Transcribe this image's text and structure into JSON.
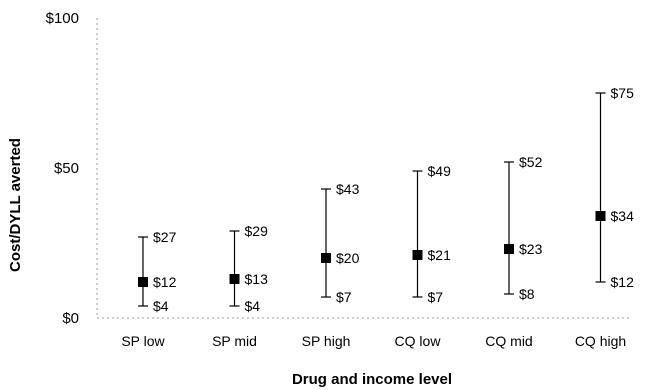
{
  "chart_data": {
    "type": "scatter",
    "subtype": "error-bar",
    "xlabel": "Drug and income level",
    "ylabel": "Cost/DYLL averted",
    "ylim": [
      0,
      100
    ],
    "yticks": [
      {
        "value": 0,
        "label": "$0"
      },
      {
        "value": 50,
        "label": "$50"
      },
      {
        "value": 100,
        "label": "$100"
      }
    ],
    "grid": false,
    "legend": "none",
    "categories": [
      "SP low",
      "SP mid",
      "SP high",
      "CQ low",
      "CQ mid",
      "CQ high"
    ],
    "points": [
      {
        "category": "SP low",
        "low": 4,
        "mid": 12,
        "high": 27,
        "low_label": "$4",
        "mid_label": "$12",
        "high_label": "$27"
      },
      {
        "category": "SP mid",
        "low": 4,
        "mid": 13,
        "high": 29,
        "low_label": "$4",
        "mid_label": "$13",
        "high_label": "$29"
      },
      {
        "category": "SP high",
        "low": 7,
        "mid": 20,
        "high": 43,
        "low_label": "$7",
        "mid_label": "$20",
        "high_label": "$43"
      },
      {
        "category": "CQ low",
        "low": 7,
        "mid": 21,
        "high": 49,
        "low_label": "$7",
        "mid_label": "$21",
        "high_label": "$49"
      },
      {
        "category": "CQ mid",
        "low": 8,
        "mid": 23,
        "high": 52,
        "low_label": "$8",
        "mid_label": "$23",
        "high_label": "$52"
      },
      {
        "category": "CQ high",
        "low": 12,
        "mid": 34,
        "high": 75,
        "low_label": "$12",
        "mid_label": "$34",
        "high_label": "$75"
      }
    ],
    "colors": {
      "marker": "#000000",
      "bar": "#000000",
      "axis": "#9a9a9a"
    }
  }
}
